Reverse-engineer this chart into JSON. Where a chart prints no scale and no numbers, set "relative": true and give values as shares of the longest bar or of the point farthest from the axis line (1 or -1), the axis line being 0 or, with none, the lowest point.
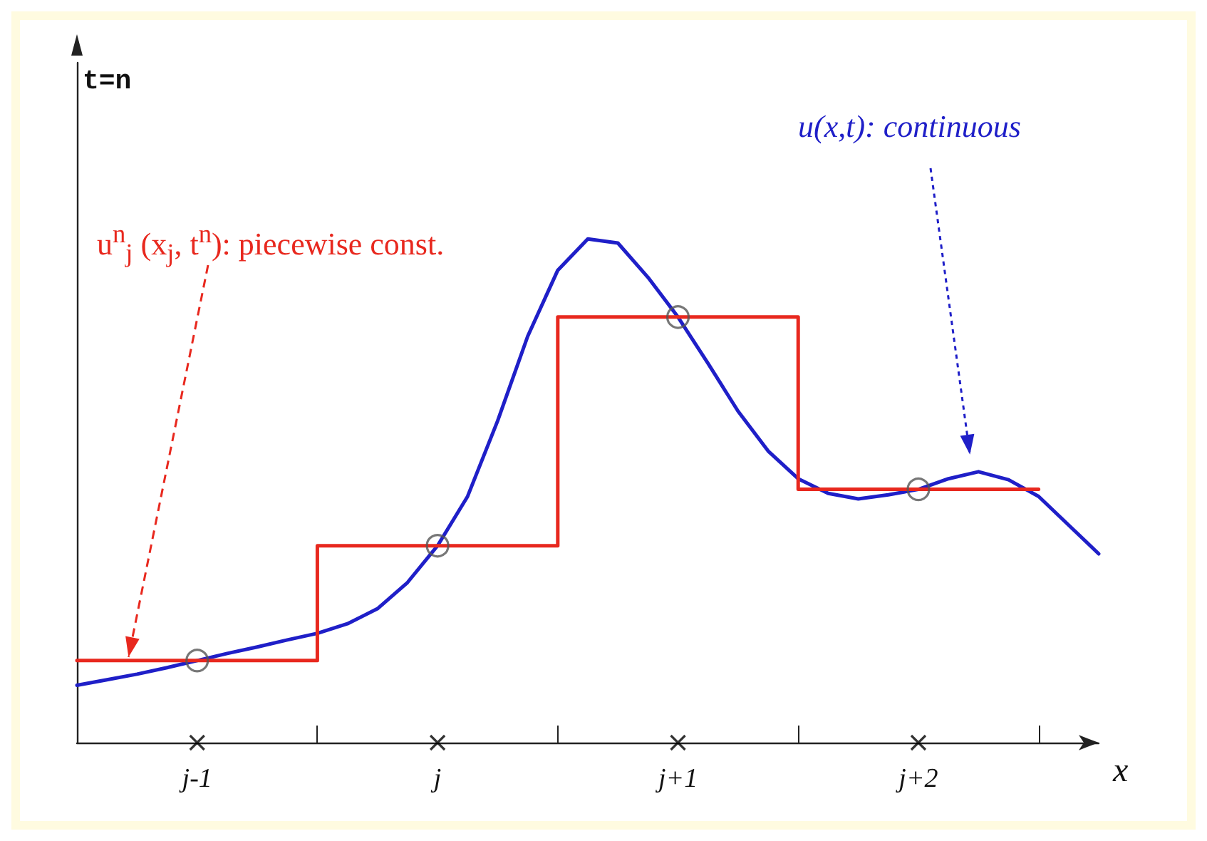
{
  "chart_data": {
    "type": "line",
    "relative": true,
    "xlabel": "x",
    "categories": [
      null,
      null,
      null,
      null,
      "j-1",
      null,
      null,
      null,
      null,
      null,
      null,
      null,
      "j",
      null,
      null,
      null,
      null,
      null,
      null,
      null,
      "j+1",
      null,
      null,
      null,
      null,
      null,
      null,
      null,
      "j+2",
      null,
      null,
      null,
      null,
      null,
      null
    ],
    "series": [
      {
        "color": "#1f1fc8",
        "marker": "none",
        "values": [
          0.114,
          0.125,
          0.136,
          0.149,
          0.163,
          0.177,
          0.19,
          0.204,
          0.217,
          0.236,
          0.266,
          0.318,
          0.391,
          0.489,
          0.639,
          0.807,
          0.938,
          1.0,
          0.992,
          0.924,
          0.845,
          0.753,
          0.658,
          0.579,
          0.524,
          0.495,
          0.484,
          0.492,
          0.503,
          0.524,
          0.538,
          0.522,
          0.489,
          0.432,
          0.375
        ]
      },
      {
        "type": "step",
        "color": "#e8281e",
        "marker": "none",
        "values": [
          0.163,
          0.163,
          0.163,
          0.163,
          0.163,
          0.163,
          0.163,
          0.163,
          0.163,
          0.391,
          0.391,
          0.391,
          0.391,
          0.391,
          0.391,
          0.391,
          0.391,
          0.845,
          0.845,
          0.845,
          0.845,
          0.845,
          0.845,
          0.845,
          0.845,
          0.503,
          0.503,
          0.503,
          0.503,
          0.503,
          0.503,
          0.503,
          0.503,
          null,
          null
        ]
      },
      {
        "type": "scatter",
        "color": "#555555",
        "marker": "circle",
        "values": [
          null,
          null,
          null,
          null,
          0.163,
          null,
          null,
          null,
          null,
          null,
          null,
          null,
          0.391,
          null,
          null,
          null,
          null,
          null,
          null,
          null,
          0.845,
          null,
          null,
          null,
          null,
          null,
          null,
          null,
          0.503,
          null,
          null,
          null,
          null,
          null,
          null
        ]
      },
      {
        "type": "scatter",
        "color": "#000000",
        "marker": "cross",
        "values": [
          null,
          null,
          null,
          null,
          0,
          null,
          null,
          null,
          null,
          null,
          null,
          null,
          0,
          null,
          null,
          null,
          null,
          null,
          null,
          null,
          0,
          null,
          null,
          null,
          null,
          null,
          null,
          null,
          0,
          null,
          null,
          null,
          null,
          null,
          null
        ]
      }
    ],
    "annotations": [
      "t=n",
      "u$^{n}$$_{j}$ (x$_{j}$, t$^{n}$): piecewise const.",
      "u(x,t): continuous"
    ],
    "grid": false
  }
}
